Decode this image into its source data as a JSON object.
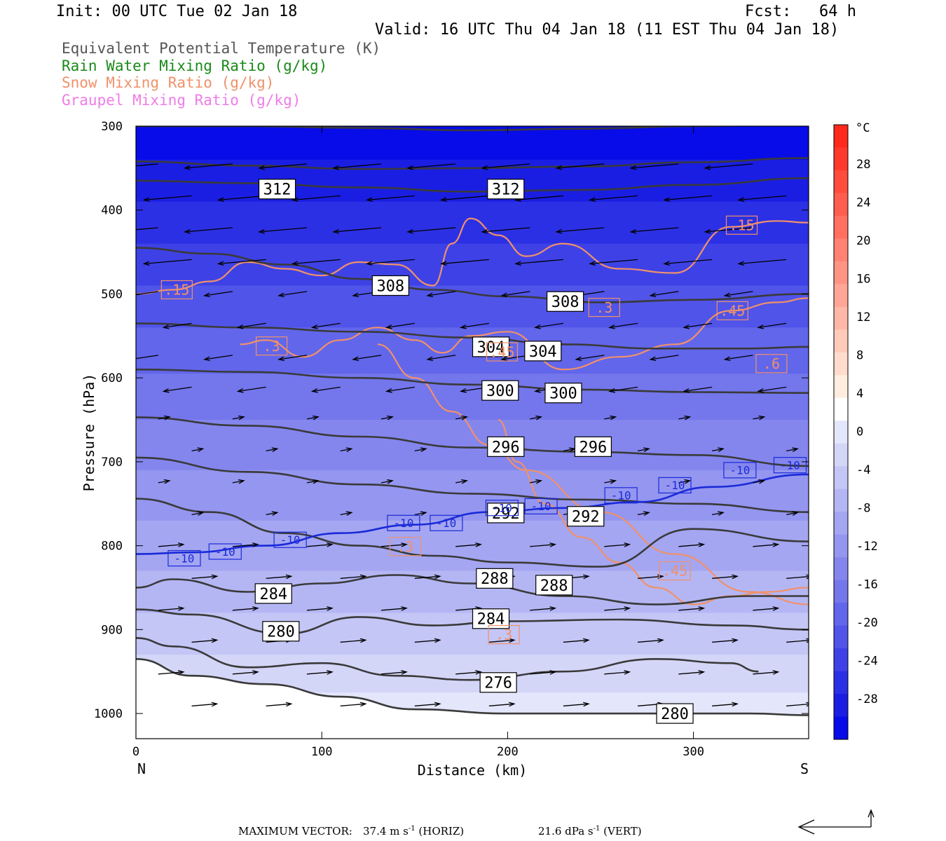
{
  "header": {
    "init": "Init: 00 UTC Tue 02 Jan 18",
    "fcst": "Fcst:   64 h",
    "valid": "Valid: 16 UTC Thu 04 Jan 18 (11 EST Thu 04 Jan 18)"
  },
  "legend": [
    {
      "text": "Equivalent Potential Temperature (K)",
      "color": "#555555"
    },
    {
      "text": "Rain Water Mixing Ratio (g/kg)",
      "color": "#1a8a1a"
    },
    {
      "text": "Snow Mixing Ratio (g/kg)",
      "color": "#f0916a"
    },
    {
      "text": "Graupel Mixing Ratio (g/kg)",
      "color": "#f07ce8"
    }
  ],
  "chart_data": {
    "type": "contour",
    "xlabel": "Distance (km)",
    "ylabel": "Pressure (hPa)",
    "xlim": [
      0,
      362
    ],
    "ylim": [
      1030,
      300
    ],
    "x_ticks": [
      0,
      100,
      200,
      300
    ],
    "y_ticks": [
      300,
      400,
      500,
      600,
      700,
      800,
      900,
      1000
    ],
    "x_end_labels": {
      "left": "N",
      "right": "S"
    },
    "colorbar": {
      "unit": "°C",
      "labels": [
        28,
        24,
        20,
        16,
        12,
        8,
        4,
        0,
        -4,
        -8,
        -12,
        -16,
        -20,
        -24,
        -28
      ],
      "warm_colors": [
        "#ff2a1c",
        "#ff3a2c",
        "#ff4c3c",
        "#ff5e4e",
        "#ff7060",
        "#ff8272",
        "#ff9484",
        "#ffa696",
        "#ffb8a8",
        "#ffcaba",
        "#ffdccc",
        "#ffeee0"
      ],
      "cold_colors": [
        "#ffffff",
        "#e4e6fb",
        "#d4d6f8",
        "#c4c6f6",
        "#b4b6f4",
        "#a4a6f2",
        "#9496f0",
        "#8486ee",
        "#7476ec",
        "#6266ea",
        "#5054e8",
        "#3e42e6",
        "#2c30e4",
        "#1a1ee2",
        "#080ce8"
      ]
    },
    "theta_e_labels": [
      {
        "text": "312",
        "x": 76,
        "p": 375
      },
      {
        "text": "312",
        "x": 199,
        "p": 375
      },
      {
        "text": "308",
        "x": 137,
        "p": 490
      },
      {
        "text": "308",
        "x": 231,
        "p": 509
      },
      {
        "text": "304",
        "x": 191,
        "p": 563
      },
      {
        "text": "304",
        "x": 219,
        "p": 568
      },
      {
        "text": "300",
        "x": 196,
        "p": 615
      },
      {
        "text": "300",
        "x": 230,
        "p": 618
      },
      {
        "text": "296",
        "x": 199,
        "p": 682
      },
      {
        "text": "296",
        "x": 246,
        "p": 682
      },
      {
        "text": "292",
        "x": 199,
        "p": 761
      },
      {
        "text": "292",
        "x": 242,
        "p": 765
      },
      {
        "text": "288",
        "x": 193,
        "p": 839
      },
      {
        "text": "288",
        "x": 225,
        "p": 847
      },
      {
        "text": "284",
        "x": 74,
        "p": 857
      },
      {
        "text": "284",
        "x": 191,
        "p": 887
      },
      {
        "text": "280",
        "x": 78,
        "p": 902
      },
      {
        "text": "276",
        "x": 195,
        "p": 963
      },
      {
        "text": "280",
        "x": 290,
        "p": 1000
      }
    ],
    "theta_e_lines": [
      {
        "x": [
          0,
          60,
          120,
          180,
          240,
          300,
          362
        ],
        "p": [
          300,
          300,
          302,
          305,
          303,
          300,
          298
        ]
      },
      {
        "x": [
          0,
          60,
          120,
          180,
          240,
          300,
          362
        ],
        "p": [
          342,
          347,
          351,
          350,
          348,
          343,
          338
        ]
      },
      {
        "x": [
          0,
          60,
          120,
          180,
          240,
          300,
          362
        ],
        "p": [
          365,
          368,
          373,
          378,
          376,
          370,
          362
        ]
      },
      {
        "x": [
          0,
          40,
          80,
          120,
          160,
          200,
          250,
          300,
          362
        ],
        "p": [
          445,
          452,
          465,
          482,
          495,
          503,
          510,
          507,
          500
        ]
      },
      {
        "x": [
          0,
          60,
          120,
          180,
          230,
          280,
          330,
          362
        ],
        "p": [
          535,
          540,
          545,
          552,
          560,
          565,
          565,
          563
        ]
      },
      {
        "x": [
          0,
          60,
          120,
          180,
          240,
          300,
          362
        ],
        "p": [
          590,
          593,
          600,
          608,
          614,
          617,
          618
        ]
      },
      {
        "x": [
          0,
          60,
          120,
          180,
          240,
          300,
          362
        ],
        "p": [
          647,
          657,
          670,
          683,
          688,
          692,
          705
        ]
      },
      {
        "x": [
          0,
          60,
          120,
          180,
          240,
          300,
          362
        ],
        "p": [
          695,
          712,
          727,
          738,
          745,
          750,
          760
        ]
      },
      {
        "x": [
          0,
          40,
          80,
          120,
          160,
          200,
          250,
          300,
          362
        ],
        "p": [
          744,
          760,
          785,
          800,
          812,
          820,
          825,
          780,
          795
        ]
      },
      {
        "x": [
          0,
          20,
          60,
          100,
          140,
          180,
          230,
          280,
          330,
          362
        ],
        "p": [
          850,
          840,
          855,
          845,
          835,
          845,
          860,
          870,
          860,
          860
        ]
      },
      {
        "x": [
          0,
          30,
          80,
          120,
          160,
          200,
          260,
          320,
          362
        ],
        "p": [
          876,
          882,
          905,
          885,
          895,
          890,
          888,
          895,
          900
        ]
      },
      {
        "x": [
          0,
          20,
          60,
          100,
          140,
          180,
          230,
          280,
          320,
          335
        ],
        "p": [
          910,
          920,
          945,
          940,
          955,
          960,
          950,
          935,
          940,
          950
        ]
      },
      {
        "x": [
          0,
          30,
          70,
          110,
          150,
          200,
          230,
          280,
          330,
          362
        ],
        "p": [
          935,
          955,
          965,
          980,
          995,
          1000,
          1000,
          1000,
          1000,
          1002
        ]
      }
    ],
    "minus10_line": {
      "x": [
        0,
        30,
        70,
        110,
        150,
        190,
        230,
        270,
        310,
        362
      ],
      "p": [
        810,
        808,
        800,
        785,
        775,
        760,
        755,
        748,
        730,
        715
      ]
    },
    "minus10_labels": [
      {
        "x": 26,
        "p": 815
      },
      {
        "x": 48,
        "p": 807
      },
      {
        "x": 83,
        "p": 793
      },
      {
        "x": 144,
        "p": 773
      },
      {
        "x": 167,
        "p": 773
      },
      {
        "x": 197,
        "p": 755
      },
      {
        "x": 218,
        "p": 753
      },
      {
        "x": 261,
        "p": 740
      },
      {
        "x": 290,
        "p": 728
      },
      {
        "x": 325,
        "p": 710
      },
      {
        "x": 352,
        "p": 704
      }
    ],
    "snow_labels": [
      {
        "text": ".15",
        "x": 22,
        "p": 495
      },
      {
        "text": ".15",
        "x": 326,
        "p": 418
      },
      {
        "text": ".3",
        "x": 73,
        "p": 562
      },
      {
        "text": ".3",
        "x": 252,
        "p": 516
      },
      {
        "text": ".45",
        "x": 321,
        "p": 520
      },
      {
        "text": ".45",
        "x": 197,
        "p": 569
      },
      {
        "text": ".6",
        "x": 342,
        "p": 583
      },
      {
        "text": ".3",
        "x": 145,
        "p": 801
      },
      {
        "text": ".3",
        "x": 198,
        "p": 906
      },
      {
        "text": ".45",
        "x": 290,
        "p": 830
      }
    ],
    "snow_lines": [
      {
        "x": [
          0,
          20,
          40,
          60,
          80,
          100,
          120,
          140,
          160,
          170,
          180,
          195,
          210,
          230,
          260,
          290,
          320,
          345,
          362
        ],
        "p": [
          500,
          495,
          485,
          462,
          470,
          478,
          462,
          465,
          490,
          440,
          410,
          430,
          455,
          440,
          470,
          475,
          420,
          413,
          415
        ]
      },
      {
        "x": [
          56,
          70,
          90,
          110,
          130,
          150,
          165,
          180,
          200,
          230,
          260,
          290,
          320,
          345,
          362
        ],
        "p": [
          560,
          555,
          575,
          555,
          540,
          555,
          570,
          550,
          545,
          590,
          575,
          560,
          520,
          510,
          505
        ]
      },
      {
        "x": [
          130,
          150,
          170,
          190,
          210,
          250,
          290,
          330,
          362
        ],
        "p": [
          560,
          600,
          640,
          680,
          710,
          760,
          810,
          855,
          870
        ]
      },
      {
        "x": [
          195,
          205,
          220,
          240,
          260,
          280,
          300,
          320,
          340,
          362
        ],
        "p": [
          650,
          700,
          750,
          790,
          820,
          850,
          870,
          860,
          855,
          850
        ]
      }
    ],
    "footer": {
      "max_vector_label": "MAXIMUM VECTOR:",
      "horiz_value": "37.4 m s",
      "horiz_exp": "-1",
      "horiz_tag": "(HORIZ)",
      "vert_value": "21.6 dPa s",
      "vert_exp": "-1",
      "vert_tag": "(VERT)"
    }
  }
}
